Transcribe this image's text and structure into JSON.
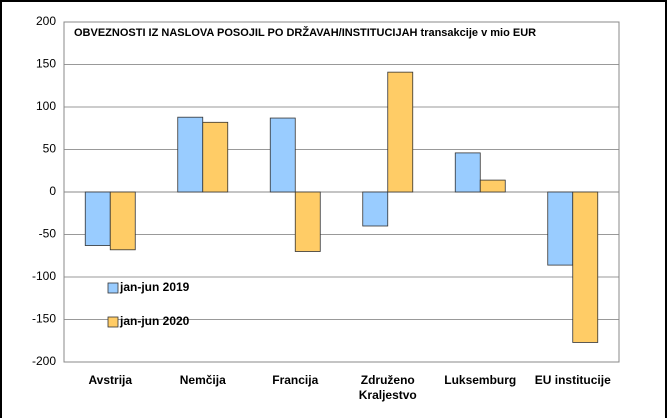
{
  "chart_data": {
    "type": "bar",
    "title": "OBVEZNOSTI IZ NASLOVA POSOJIL PO DRŽAVAH/INSTITUCIJAH transakcije v mio EUR",
    "categories": [
      "Avstrija",
      "Nemčija",
      "Francija",
      "Združeno Kraljestvo",
      "Luksemburg",
      "EU institucije"
    ],
    "series": [
      {
        "name": "jan-jun 2019",
        "color": "#99ccff",
        "values": [
          -63,
          88,
          87,
          -40,
          46,
          -86
        ]
      },
      {
        "name": "jan-jun 2020",
        "color": "#ffcc66",
        "values": [
          -68,
          82,
          -70,
          141,
          14,
          -177
        ]
      }
    ],
    "ylim": [
      -200,
      200
    ],
    "yticks": [
      -200,
      -150,
      -100,
      -50,
      0,
      50,
      100,
      150,
      200
    ],
    "grid": true
  }
}
